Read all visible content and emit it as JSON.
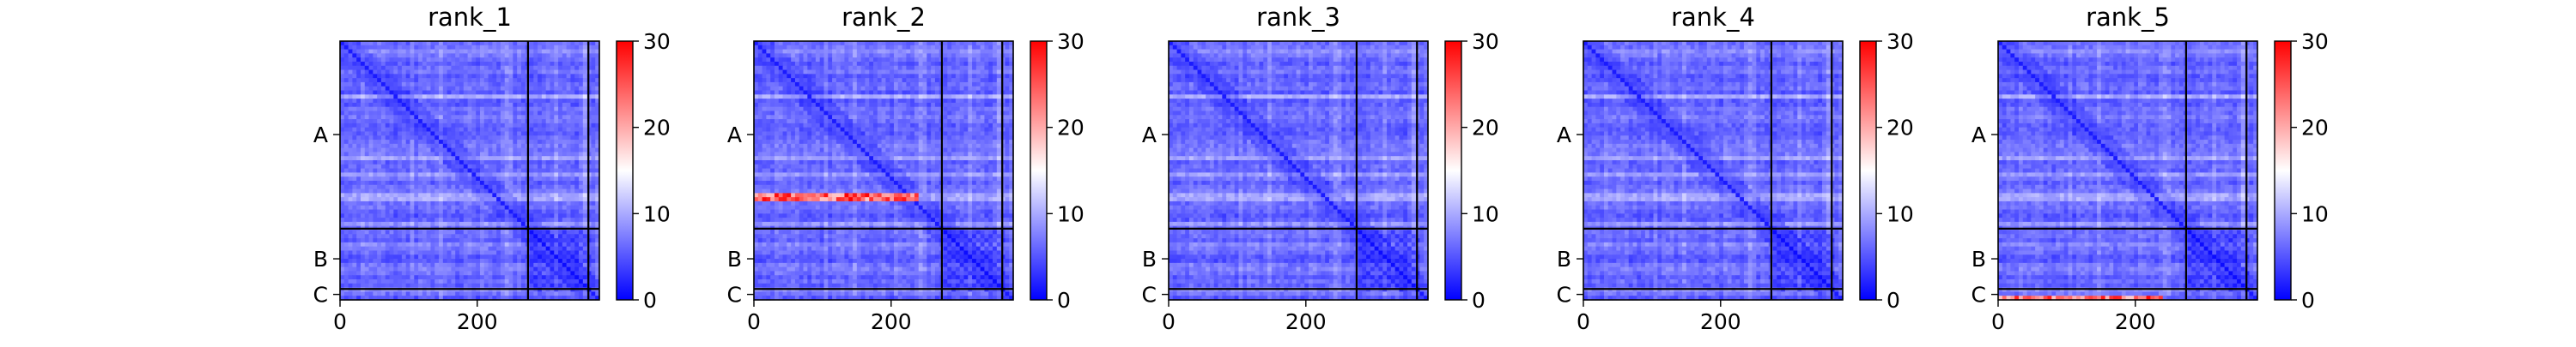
{
  "chart_data": {
    "type": "heatmap",
    "colorbar": {
      "range": [
        0,
        30
      ],
      "ticks": [
        0,
        10,
        20,
        30
      ],
      "colormap": "bwr",
      "colors": {
        "low": "#0000ff",
        "mid": "#ffffff",
        "high": "#ff0000"
      }
    },
    "matrix_size": 378,
    "chain_breaks": [
      274,
      362
    ],
    "chains": [
      {
        "label": "A",
        "center": 136.5
      },
      {
        "label": "B",
        "center": 318
      },
      {
        "label": "C",
        "center": 370
      }
    ],
    "xticks": [
      0,
      200
    ],
    "panels": [
      {
        "title": "rank_1",
        "high_error_rows": []
      },
      {
        "title": "rank_2",
        "high_error_rows": [
          225
        ]
      },
      {
        "title": "rank_3",
        "high_error_rows": []
      },
      {
        "title": "rank_4",
        "high_error_rows": []
      },
      {
        "title": "rank_5",
        "high_error_rows": [
          370
        ]
      }
    ]
  }
}
